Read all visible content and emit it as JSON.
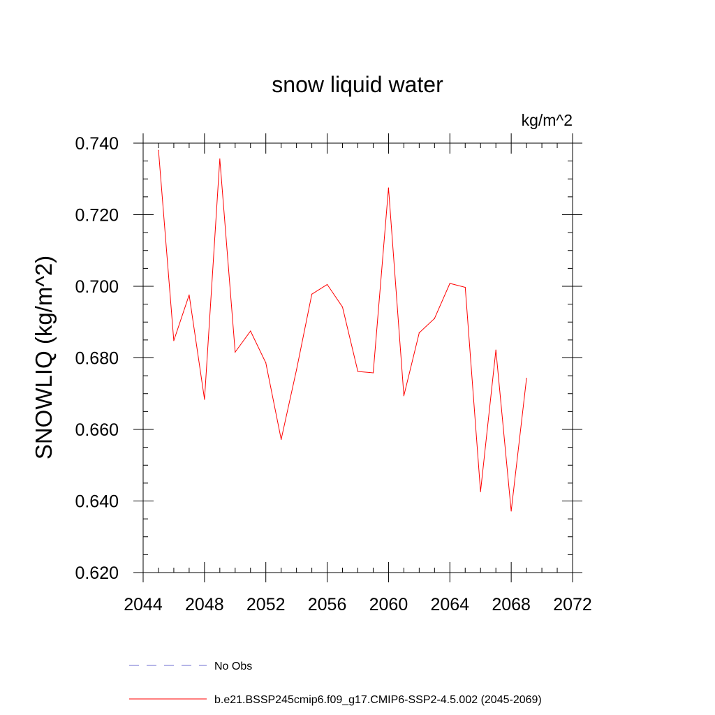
{
  "chart_data": {
    "type": "line",
    "title": "snow liquid water",
    "units_label": "kg/m^2",
    "ylabel": "SNOWLIQ  (kg/m^2)",
    "xlabel": "",
    "xlim": [
      2044,
      2072
    ],
    "ylim": [
      0.62,
      0.74
    ],
    "xticks": [
      "2044",
      "2048",
      "2052",
      "2056",
      "2060",
      "2064",
      "2068",
      "2072"
    ],
    "yticks": [
      "0.620",
      "0.640",
      "0.660",
      "0.680",
      "0.700",
      "0.720",
      "0.740"
    ],
    "grid": false,
    "legend_position": "bottom",
    "series": [
      {
        "name": "b.e21.BSSP245cmip6.f09_g17.CMIP6-SSP2-4.5.002 (2045-2069)",
        "color": "#ff0000",
        "style": "solid",
        "x": [
          2045,
          2046,
          2047,
          2048,
          2049,
          2050,
          2051,
          2052,
          2053,
          2054,
          2055,
          2056,
          2057,
          2058,
          2059,
          2060,
          2061,
          2062,
          2063,
          2064,
          2065,
          2066,
          2067,
          2068,
          2069
        ],
        "y": [
          0.738,
          0.6848,
          0.6976,
          0.6684,
          0.7356,
          0.6816,
          0.6875,
          0.6786,
          0.6572,
          0.6766,
          0.6978,
          0.7005,
          0.6942,
          0.6762,
          0.6758,
          0.7275,
          0.6694,
          0.687,
          0.691,
          0.7008,
          0.6997,
          0.6426,
          0.6822,
          0.6372,
          0.6743
        ]
      }
    ],
    "legend": [
      {
        "label": "No Obs",
        "color": "#6c6cd0",
        "style": "dashed"
      },
      {
        "label": "b.e21.BSSP245cmip6.f09_g17.CMIP6-SSP2-4.5.002 (2045-2069)",
        "color": "#ff0000",
        "style": "solid"
      }
    ]
  }
}
